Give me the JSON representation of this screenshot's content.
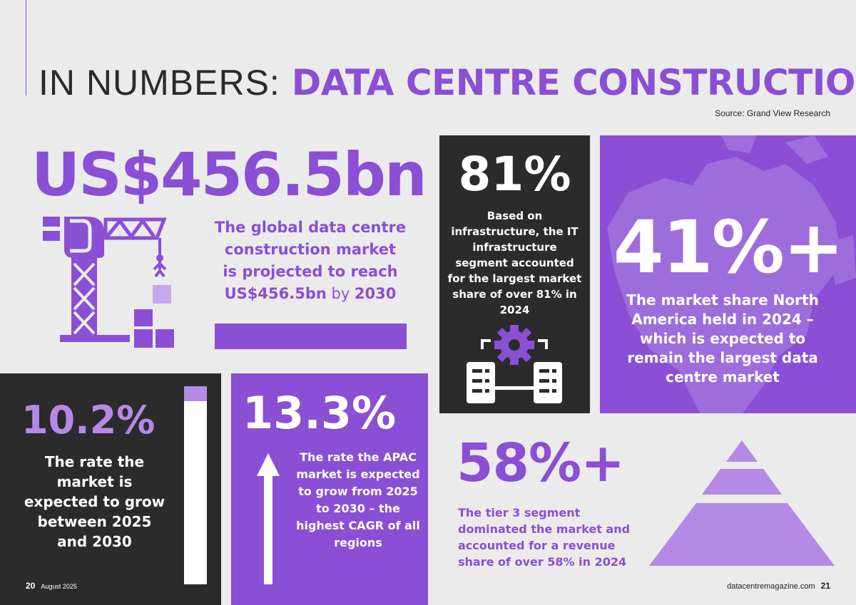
{
  "header": {
    "title_light": "IN NUMBERS:",
    "title_bold": "DATA CENTRE CONSTRUCTION",
    "source": "Source: Grand View Research"
  },
  "global_market": {
    "value": "US$456.5bn",
    "desc_line1": "The global data centre",
    "desc_line2": "construction market",
    "desc_line3": "is projected to reach",
    "desc_bold_value": "US$456.5bn",
    "desc_by": " by ",
    "desc_bold_year": "2030"
  },
  "it_infrastructure": {
    "value": "81%",
    "desc": "Based on infrastructure, the IT infrastructure segment accounted for the largest market share of over 81% in 2024"
  },
  "north_america": {
    "value": "41%+",
    "desc_before": "The market share North America held in ",
    "desc_year": "2024",
    "desc_after": " – which is expected to remain the largest data centre market"
  },
  "growth_rate": {
    "value": "10.2%",
    "desc": "The rate the market is expected to grow between 2025 and 2030"
  },
  "apac": {
    "value": "13.3%",
    "desc": "The rate the APAC market is expected to grow from 2025 to 2030 – the highest CAGR of all regions"
  },
  "tier3": {
    "value": "58%+",
    "desc": "The tier 3 segment dominated the market and accounted for a revenue share of over 58% in 2024"
  },
  "footer": {
    "left_page": "20",
    "left_date": "August 2025",
    "right_site": "datacentremagazine.com",
    "right_page": "21"
  },
  "colors": {
    "purple": "#8a4fd4",
    "light_purple": "#b48ae6",
    "dark": "#2b2b2b",
    "background": "#ebebeb"
  },
  "icons": [
    "crane-icon",
    "gear-servers-icon",
    "north-america-map",
    "arrow-up-icon",
    "pyramid-icon",
    "progress-bar"
  ]
}
